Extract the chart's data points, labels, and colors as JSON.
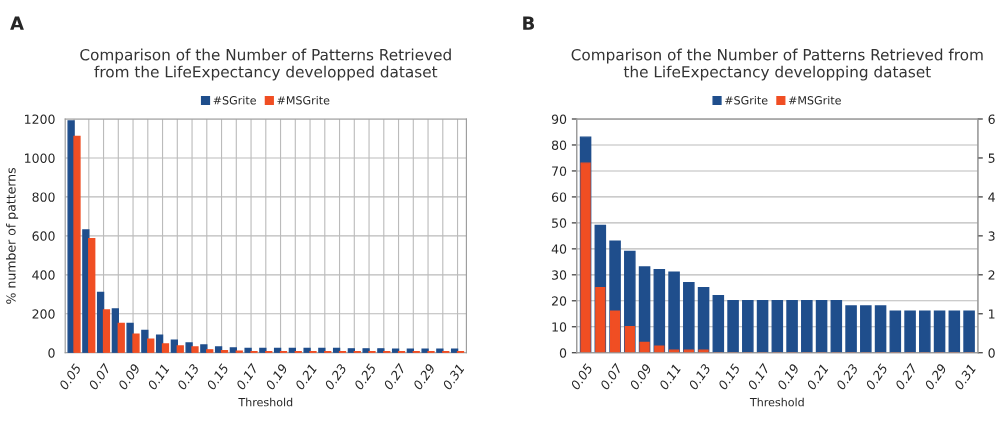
{
  "chart_data": [
    {
      "type": "bar",
      "title": "Comparison of the Number of Patterns Retrieved\nfrom the LifeExpectancy developped dataset",
      "xlabel": "Threshold",
      "ylabel": "% number of patterns",
      "annotations": [
        "A"
      ],
      "categories": [
        "0.05",
        null,
        "0.07",
        null,
        "0.09",
        null,
        "0.11",
        null,
        "0.13",
        null,
        "0.15",
        null,
        "0.17",
        null,
        "0.19",
        null,
        "0.21",
        null,
        "0.23",
        null,
        "0.25",
        null,
        "0.27",
        null,
        "0.29",
        null,
        "0.31"
      ],
      "series": [
        {
          "name": "#SGrite",
          "color": "#1f4e8c",
          "values": [
            1190,
            630,
            310,
            225,
            150,
            115,
            90,
            65,
            50,
            40,
            30,
            25,
            22,
            22,
            22,
            22,
            22,
            22,
            22,
            20,
            20,
            20,
            18,
            18,
            18,
            18,
            18
          ]
        },
        {
          "name": "#MSGrite",
          "color": "#f04e23",
          "values": [
            1110,
            585,
            220,
            150,
            95,
            70,
            45,
            35,
            30,
            15,
            10,
            8,
            6,
            5,
            5,
            5,
            5,
            5,
            5,
            5,
            5,
            5,
            5,
            5,
            5,
            5,
            5
          ]
        }
      ],
      "ylim": [
        0,
        1200
      ],
      "yticks": [
        0,
        200,
        400,
        600,
        800,
        1000,
        1200
      ],
      "grid": true,
      "legend": "top"
    },
    {
      "type": "bar",
      "title": "Comparison of the Number of Patterns Retrieved from\nthe LifeExpectancy developping dataset",
      "xlabel": "Threshold",
      "annotations": [
        "B"
      ],
      "categories": [
        "0.05",
        null,
        "0.07",
        null,
        "0.09",
        null,
        "0.11",
        null,
        "0.13",
        null,
        "0.15",
        null,
        "0.17",
        null,
        "0.19",
        null,
        "0.21",
        null,
        "0.23",
        null,
        "0.25",
        null,
        "0.27",
        null,
        "0.29",
        null,
        "0.31"
      ],
      "series": [
        {
          "name": "#SGrite",
          "color": "#1f4e8c",
          "values": [
            83,
            49,
            43,
            39,
            33,
            32,
            31,
            27,
            25,
            22,
            20,
            20,
            20,
            20,
            20,
            20,
            20,
            20,
            18,
            18,
            18,
            16,
            16,
            16,
            16,
            16,
            16
          ]
        },
        {
          "name": "#MSGrite",
          "color": "#f04e23",
          "values": [
            73,
            25,
            16,
            10,
            4,
            2.5,
            1,
            1,
            1,
            0,
            0,
            0,
            0,
            0,
            0,
            0,
            0,
            0,
            0,
            0,
            0,
            0,
            0,
            0,
            0,
            0,
            0
          ]
        }
      ],
      "ylim": [
        0,
        90
      ],
      "yticks": [
        0,
        10,
        20,
        30,
        40,
        50,
        60,
        70,
        80,
        90
      ],
      "y2lim": [
        0,
        6
      ],
      "y2ticks": [
        0,
        1,
        2,
        3,
        4,
        5,
        6
      ],
      "grid": "y",
      "legend": "top"
    }
  ]
}
